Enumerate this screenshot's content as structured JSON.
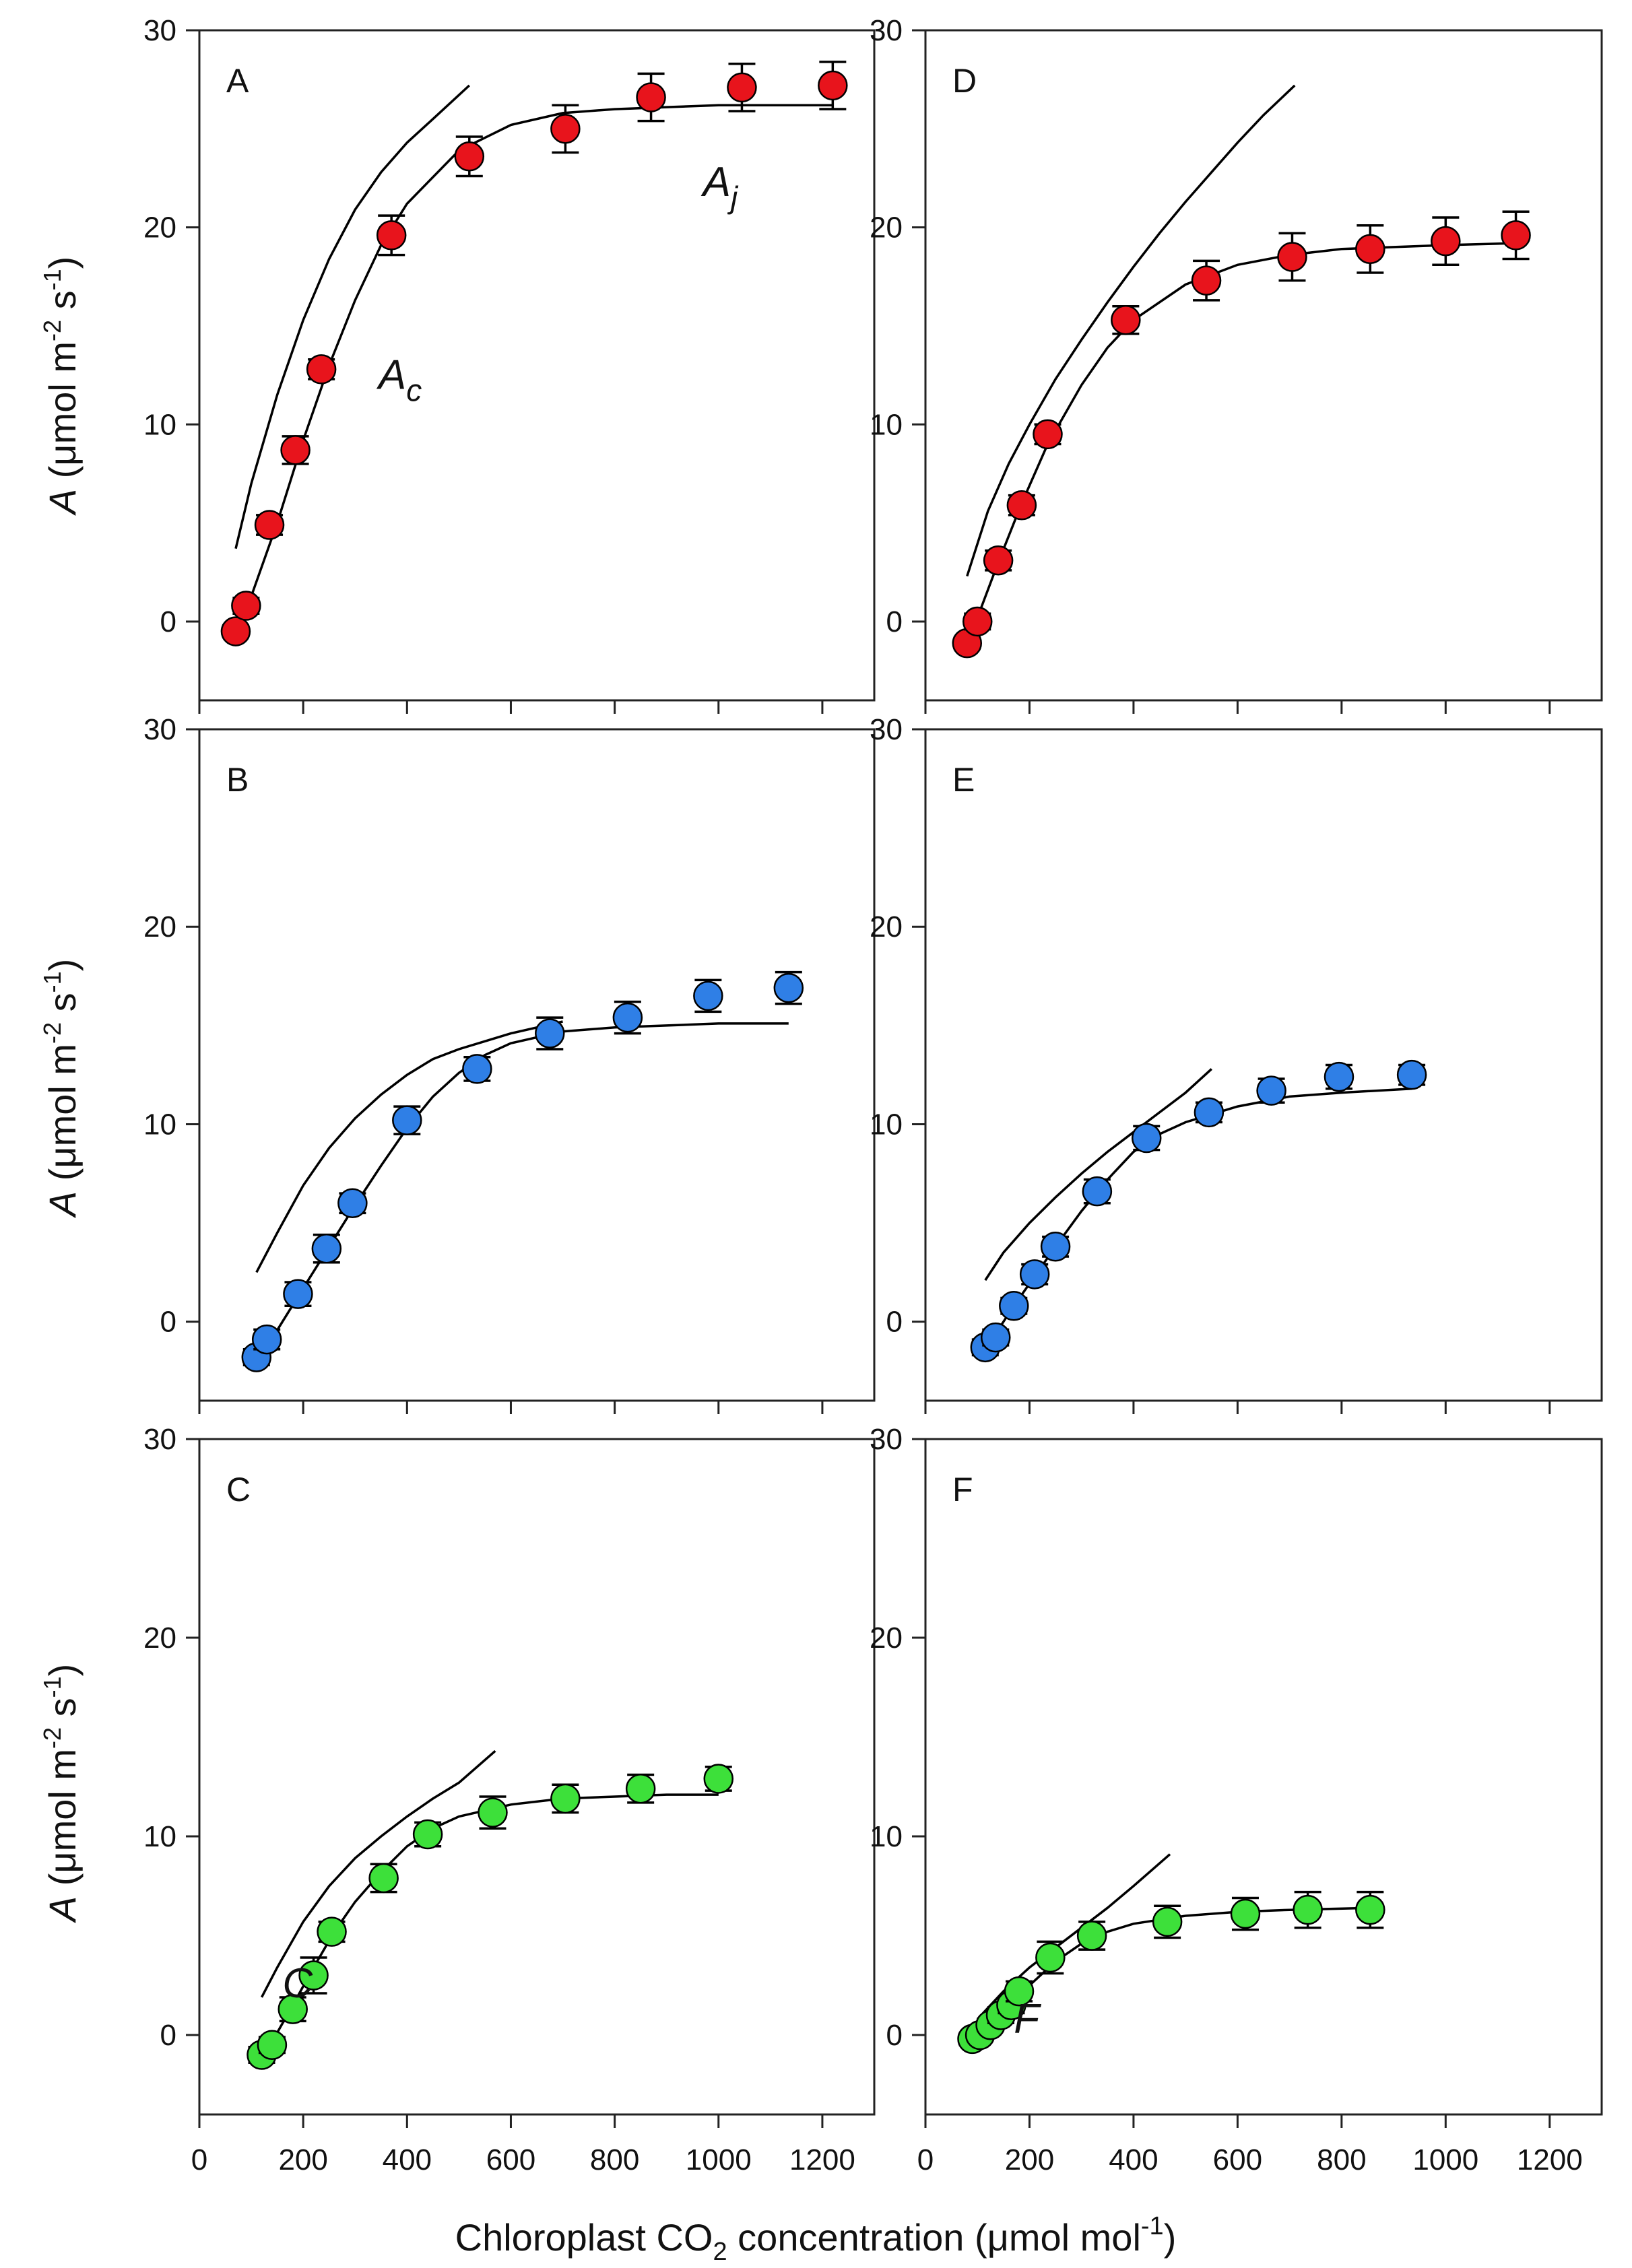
{
  "figure": {
    "xlabel_main": "Chloroplast CO",
    "xlabel_sub": "2",
    "xlabel_rest": " concentration (μmol mol",
    "xlabel_sup": "-1",
    "xlabel_close": ")",
    "ylabel_italic": "A",
    "ylabel_main": " (μmol m",
    "ylabel_sup1": "-2",
    "ylabel_mid": " s",
    "ylabel_sup2": "-1",
    "ylabel_close": ")",
    "xticks": [
      "0",
      "200",
      "400",
      "600",
      "800",
      "1000",
      "1200"
    ],
    "yticks": [
      "0",
      "10",
      "20",
      "30"
    ]
  },
  "colors": {
    "red": "#e8141c",
    "blue": "#2f7fe6",
    "green": "#3de03a"
  },
  "chart_data": [
    {
      "type": "scatter",
      "panel": "A",
      "color": "red",
      "xlim": [
        0,
        1300
      ],
      "ylim": [
        -4,
        30
      ],
      "x": [
        70,
        90,
        135,
        185,
        235,
        370,
        520,
        705,
        870,
        1045,
        1220
      ],
      "y": [
        -0.5,
        0.8,
        4.9,
        8.7,
        12.8,
        19.6,
        23.6,
        25.0,
        26.6,
        27.1,
        27.2
      ],
      "err": [
        0.3,
        0.4,
        0.5,
        0.7,
        0.5,
        1.0,
        1.0,
        1.2,
        1.2,
        1.2,
        1.2
      ],
      "ac_curve": {
        "x": [
          70,
          100,
          150,
          200,
          250,
          300,
          350,
          400,
          450,
          520
        ],
        "y": [
          3.7,
          7.0,
          11.5,
          15.3,
          18.4,
          20.9,
          22.8,
          24.3,
          25.5,
          27.2
        ]
      },
      "aj_curve": {
        "x": [
          80,
          150,
          200,
          250,
          300,
          350,
          400,
          500,
          600,
          700,
          800,
          900,
          1000,
          1100,
          1220
        ],
        "y": [
          -0.2,
          5.0,
          9.2,
          13.0,
          16.3,
          19.1,
          21.2,
          23.9,
          25.2,
          25.8,
          26.0,
          26.1,
          26.2,
          26.2,
          26.2
        ]
      },
      "annotations": [
        {
          "main": "A",
          "sub": "j",
          "x": 970,
          "y": 21.6
        },
        {
          "main": "A",
          "sub": "c",
          "x": 345,
          "y": 11.8
        }
      ]
    },
    {
      "type": "scatter",
      "panel": "B",
      "color": "blue",
      "xlim": [
        0,
        1300
      ],
      "ylim": [
        -4,
        30
      ],
      "x": [
        110,
        130,
        190,
        245,
        295,
        400,
        535,
        675,
        825,
        980,
        1135
      ],
      "y": [
        -1.8,
        -0.9,
        1.4,
        3.7,
        6.0,
        10.2,
        12.8,
        14.6,
        15.4,
        16.5,
        16.9
      ],
      "err": [
        0.4,
        0.5,
        0.6,
        0.7,
        0.5,
        0.7,
        0.6,
        0.8,
        0.8,
        0.8,
        0.8
      ],
      "ac_curve": {
        "x": [
          110,
          150,
          200,
          250,
          300,
          350,
          400,
          450,
          500,
          550,
          600,
          650,
          700
        ],
        "y": [
          2.5,
          4.5,
          6.9,
          8.8,
          10.3,
          11.5,
          12.5,
          13.3,
          13.8,
          14.2,
          14.6,
          14.9,
          15.2
        ]
      },
      "aj_curve": {
        "x": [
          120,
          200,
          250,
          300,
          350,
          400,
          450,
          500,
          550,
          600,
          700,
          800,
          900,
          1000,
          1135
        ],
        "y": [
          -1.7,
          1.7,
          3.8,
          5.9,
          7.9,
          9.8,
          11.4,
          12.6,
          13.5,
          14.1,
          14.7,
          14.9,
          15.0,
          15.1,
          15.1
        ]
      },
      "annotations": []
    },
    {
      "type": "scatter",
      "panel": "C",
      "color": "green",
      "xlim": [
        0,
        1300
      ],
      "ylim": [
        -4,
        30
      ],
      "x": [
        120,
        140,
        180,
        220,
        255,
        355,
        440,
        565,
        705,
        850,
        1000
      ],
      "y": [
        -1.0,
        -0.5,
        1.3,
        3.0,
        5.2,
        7.9,
        10.1,
        11.2,
        11.9,
        12.4,
        12.9
      ],
      "err": [
        0.4,
        0.4,
        0.6,
        0.9,
        0.5,
        0.7,
        0.6,
        0.8,
        0.7,
        0.7,
        0.6
      ],
      "ac_curve": {
        "x": [
          120,
          150,
          200,
          250,
          300,
          350,
          400,
          450,
          500,
          570
        ],
        "y": [
          1.9,
          3.4,
          5.7,
          7.5,
          8.9,
          10.0,
          11.0,
          11.9,
          12.7,
          14.3
        ]
      },
      "aj_curve": {
        "x": [
          130,
          180,
          220,
          260,
          300,
          350,
          400,
          450,
          500,
          600,
          700,
          800,
          900,
          1000
        ],
        "y": [
          -0.8,
          1.5,
          3.4,
          5.2,
          6.7,
          8.2,
          9.5,
          10.4,
          11.0,
          11.6,
          11.9,
          12.0,
          12.1,
          12.1
        ]
      },
      "annotations": [
        {
          "main": "C",
          "sub": "",
          "x": 160,
          "y": 1.9
        }
      ]
    },
    {
      "type": "scatter",
      "panel": "D",
      "color": "red",
      "xlim": [
        0,
        1300
      ],
      "ylim": [
        -4,
        30
      ],
      "x": [
        80,
        100,
        140,
        185,
        235,
        385,
        540,
        705,
        855,
        1000,
        1135
      ],
      "y": [
        -1.1,
        0.0,
        3.1,
        5.9,
        9.5,
        15.3,
        17.3,
        18.5,
        18.9,
        19.3,
        19.6
      ],
      "err": [
        0.3,
        0.4,
        0.5,
        0.5,
        0.5,
        0.7,
        1.0,
        1.2,
        1.2,
        1.2,
        1.2
      ],
      "ac_curve": {
        "x": [
          80,
          120,
          160,
          200,
          250,
          300,
          350,
          400,
          450,
          500,
          550,
          600,
          650,
          710
        ],
        "y": [
          2.3,
          5.6,
          8.0,
          10.0,
          12.3,
          14.3,
          16.2,
          18.0,
          19.7,
          21.3,
          22.8,
          24.3,
          25.7,
          27.2
        ]
      },
      "aj_curve": {
        "x": [
          90,
          140,
          185,
          235,
          300,
          350,
          400,
          500,
          600,
          700,
          800,
          900,
          1000,
          1135
        ],
        "y": [
          -0.5,
          3.0,
          6.0,
          9.0,
          12.0,
          13.9,
          15.3,
          17.1,
          18.1,
          18.6,
          18.9,
          19.0,
          19.1,
          19.2
        ]
      },
      "annotations": []
    },
    {
      "type": "scatter",
      "panel": "E",
      "color": "blue",
      "xlim": [
        0,
        1300
      ],
      "ylim": [
        -4,
        30
      ],
      "x": [
        115,
        135,
        170,
        210,
        250,
        330,
        425,
        545,
        665,
        795,
        935
      ],
      "y": [
        -1.3,
        -0.8,
        0.8,
        2.4,
        3.8,
        6.6,
        9.3,
        10.6,
        11.7,
        12.4,
        12.5
      ],
      "err": [
        0.4,
        0.4,
        0.4,
        0.5,
        0.5,
        0.6,
        0.6,
        0.5,
        0.6,
        0.6,
        0.5
      ],
      "ac_curve": {
        "x": [
          115,
          150,
          200,
          250,
          300,
          350,
          400,
          450,
          500,
          550
        ],
        "y": [
          2.1,
          3.5,
          5.0,
          6.3,
          7.5,
          8.6,
          9.6,
          10.6,
          11.6,
          12.8
        ]
      },
      "aj_curve": {
        "x": [
          120,
          170,
          210,
          250,
          300,
          350,
          400,
          450,
          500,
          600,
          700,
          800,
          935
        ],
        "y": [
          -1.2,
          0.8,
          2.3,
          3.8,
          5.6,
          7.2,
          8.6,
          9.5,
          10.1,
          10.9,
          11.4,
          11.6,
          11.8
        ]
      },
      "annotations": []
    },
    {
      "type": "scatter",
      "panel": "F",
      "color": "green",
      "xlim": [
        0,
        1300
      ],
      "ylim": [
        -4,
        30
      ],
      "x": [
        90,
        105,
        125,
        145,
        165,
        180,
        240,
        320,
        465,
        615,
        735,
        855
      ],
      "y": [
        -0.2,
        0.0,
        0.5,
        1.0,
        1.5,
        2.2,
        3.9,
        5.0,
        5.7,
        6.1,
        6.3,
        6.3
      ],
      "err": [
        0.3,
        0.3,
        0.3,
        0.4,
        0.4,
        0.5,
        0.8,
        0.7,
        0.8,
        0.8,
        0.9,
        0.9
      ],
      "ac_curve": {
        "x": [
          100,
          150,
          200,
          250,
          300,
          350,
          400,
          470
        ],
        "y": [
          0.8,
          2.2,
          3.4,
          4.4,
          5.4,
          6.4,
          7.5,
          9.1
        ]
      },
      "aj_curve": {
        "x": [
          100,
          150,
          200,
          250,
          300,
          350,
          400,
          500,
          600,
          700,
          855
        ],
        "y": [
          -0.1,
          1.2,
          2.5,
          3.7,
          4.6,
          5.2,
          5.6,
          6.0,
          6.2,
          6.3,
          6.4
        ]
      },
      "annotations": [
        {
          "main": "F",
          "sub": "",
          "x": 170,
          "y": 0.1
        }
      ]
    }
  ]
}
